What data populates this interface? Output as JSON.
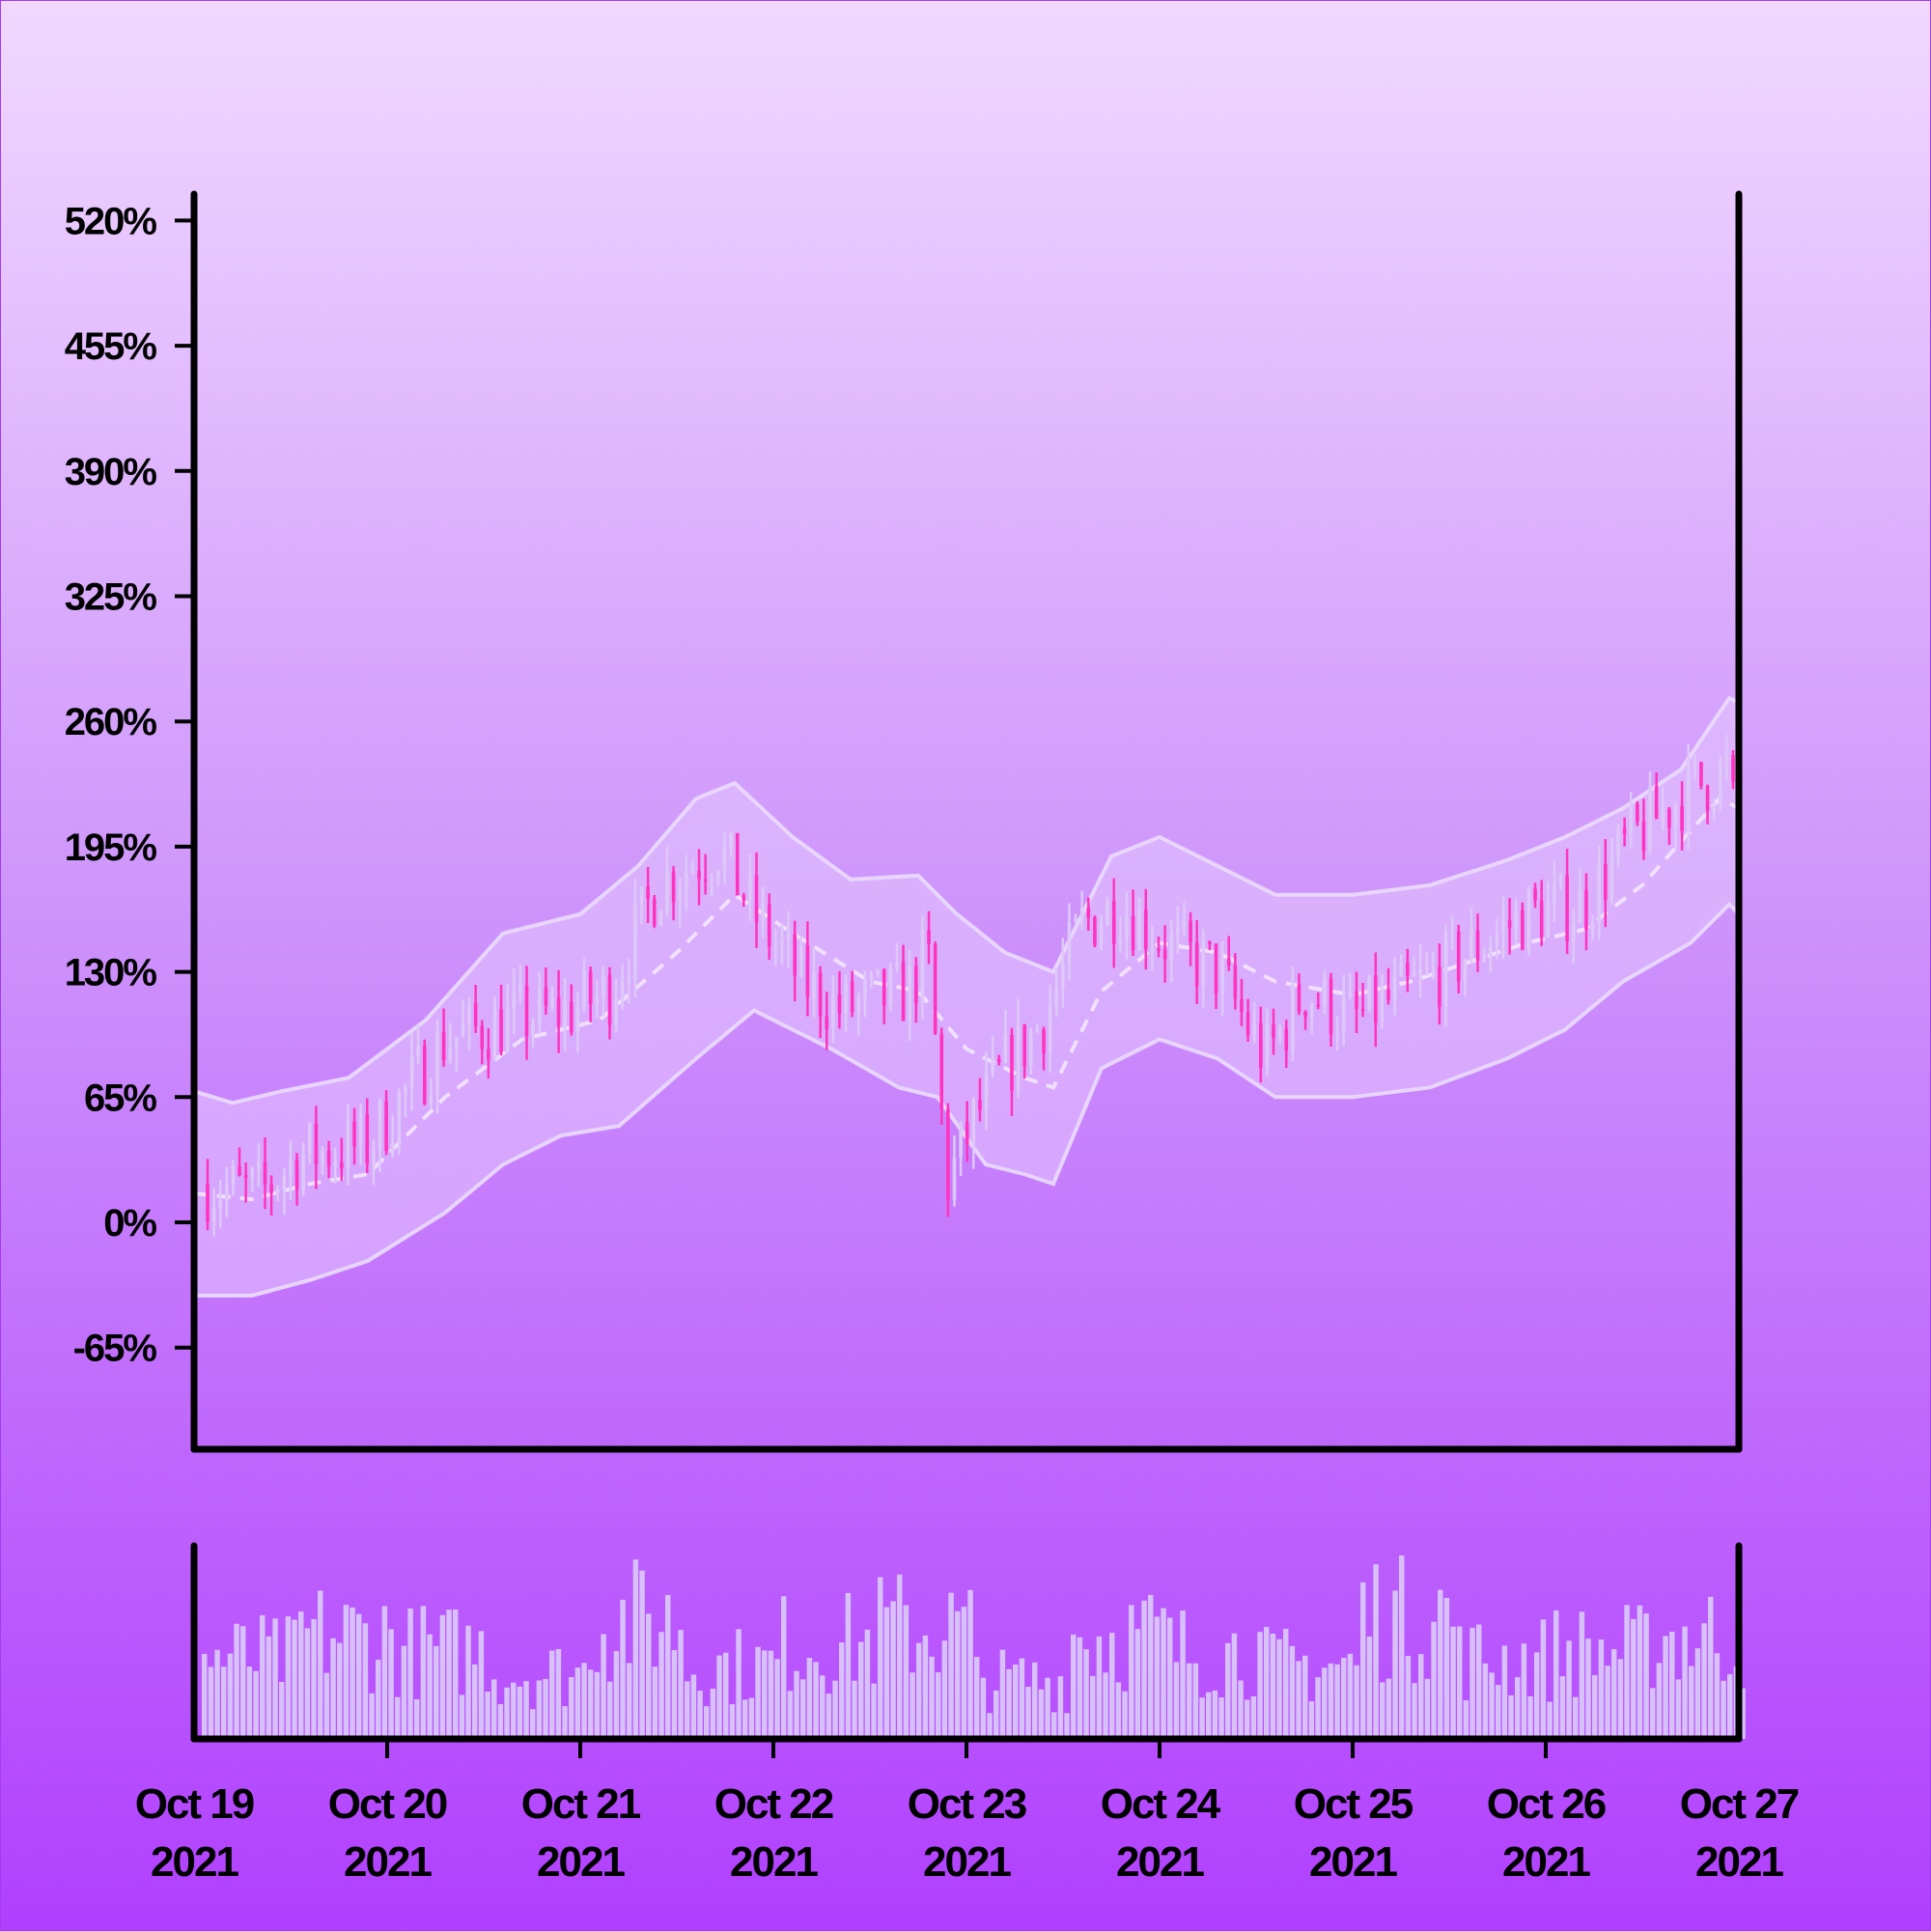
{
  "chart_data": {
    "type": "ohlc",
    "x_range": [
      "2021-10-19",
      "2021-10-27"
    ],
    "y_axis": {
      "ticks": [
        "520%",
        "455%",
        "390%",
        "325%",
        "260%",
        "195%",
        "130%",
        "65%",
        "0%",
        "-65%"
      ],
      "tick_values": [
        520,
        455,
        390,
        325,
        260,
        195,
        130,
        65,
        0,
        -65
      ],
      "ylim": [
        -100,
        535
      ]
    },
    "x_axis": {
      "ticks": [
        {
          "line1": "Oct 19",
          "line2": "2021"
        },
        {
          "line1": "Oct 20",
          "line2": "2021"
        },
        {
          "line1": "Oct 21",
          "line2": "2021"
        },
        {
          "line1": "Oct 22",
          "line2": "2021"
        },
        {
          "line1": "Oct 23",
          "line2": "2021"
        },
        {
          "line1": "Oct 24",
          "line2": "2021"
        },
        {
          "line1": "Oct 25",
          "line2": "2021"
        },
        {
          "line1": "Oct 26",
          "line2": "2021"
        },
        {
          "line1": "Oct 27",
          "line2": "2021"
        }
      ]
    },
    "price_path": [
      [
        0.0,
        20
      ],
      [
        0.35,
        15
      ],
      [
        0.55,
        35
      ],
      [
        0.9,
        40
      ],
      [
        1.3,
        95
      ],
      [
        1.65,
        105
      ],
      [
        1.95,
        110
      ],
      [
        2.15,
        120
      ],
      [
        2.4,
        175
      ],
      [
        2.72,
        195
      ],
      [
        2.9,
        160
      ],
      [
        3.15,
        125
      ],
      [
        3.35,
        110
      ],
      [
        3.7,
        120
      ],
      [
        3.8,
        140
      ],
      [
        3.9,
        20
      ],
      [
        4.05,
        55
      ],
      [
        4.2,
        80
      ],
      [
        4.4,
        105
      ],
      [
        4.6,
        155
      ],
      [
        4.8,
        165
      ],
      [
        5.1,
        140
      ],
      [
        5.3,
        130
      ],
      [
        5.55,
        85
      ],
      [
        5.75,
        120
      ],
      [
        6.0,
        105
      ],
      [
        6.3,
        120
      ],
      [
        6.6,
        140
      ],
      [
        6.9,
        160
      ],
      [
        7.2,
        165
      ],
      [
        7.45,
        200
      ],
      [
        7.75,
        225
      ],
      [
        7.95,
        235
      ],
      [
        8.0,
        185
      ]
    ],
    "sma_path": [
      [
        0.0,
        15
      ],
      [
        0.3,
        12
      ],
      [
        0.6,
        20
      ],
      [
        0.9,
        25
      ],
      [
        1.3,
        65
      ],
      [
        1.7,
        95
      ],
      [
        2.1,
        105
      ],
      [
        2.5,
        140
      ],
      [
        2.8,
        170
      ],
      [
        3.1,
        150
      ],
      [
        3.5,
        125
      ],
      [
        3.75,
        120
      ],
      [
        4.0,
        90
      ],
      [
        4.3,
        75
      ],
      [
        4.45,
        70
      ],
      [
        4.7,
        120
      ],
      [
        5.0,
        145
      ],
      [
        5.3,
        140
      ],
      [
        5.6,
        125
      ],
      [
        6.0,
        118
      ],
      [
        6.3,
        125
      ],
      [
        6.6,
        135
      ],
      [
        6.9,
        145
      ],
      [
        7.2,
        152
      ],
      [
        7.5,
        175
      ],
      [
        7.9,
        220
      ],
      [
        8.0,
        215
      ]
    ],
    "band_upper": [
      [
        0.0,
        68
      ],
      [
        0.2,
        62
      ],
      [
        0.45,
        68
      ],
      [
        0.8,
        75
      ],
      [
        1.2,
        105
      ],
      [
        1.6,
        150
      ],
      [
        2.0,
        160
      ],
      [
        2.3,
        185
      ],
      [
        2.6,
        220
      ],
      [
        2.8,
        228
      ],
      [
        3.1,
        200
      ],
      [
        3.4,
        178
      ],
      [
        3.75,
        180
      ],
      [
        3.95,
        160
      ],
      [
        4.2,
        140
      ],
      [
        4.45,
        130
      ],
      [
        4.75,
        190
      ],
      [
        5.0,
        200
      ],
      [
        5.3,
        185
      ],
      [
        5.6,
        170
      ],
      [
        6.0,
        170
      ],
      [
        6.4,
        175
      ],
      [
        6.8,
        188
      ],
      [
        7.1,
        200
      ],
      [
        7.4,
        215
      ],
      [
        7.7,
        235
      ],
      [
        7.95,
        272
      ],
      [
        8.0,
        270
      ]
    ],
    "band_lower": [
      [
        0.0,
        -38
      ],
      [
        0.3,
        -38
      ],
      [
        0.6,
        -30
      ],
      [
        0.9,
        -20
      ],
      [
        1.3,
        5
      ],
      [
        1.6,
        30
      ],
      [
        1.9,
        45
      ],
      [
        2.2,
        50
      ],
      [
        2.6,
        85
      ],
      [
        2.9,
        110
      ],
      [
        3.3,
        90
      ],
      [
        3.65,
        70
      ],
      [
        3.85,
        65
      ],
      [
        4.1,
        30
      ],
      [
        4.3,
        25
      ],
      [
        4.45,
        20
      ],
      [
        4.7,
        80
      ],
      [
        5.0,
        95
      ],
      [
        5.3,
        85
      ],
      [
        5.6,
        65
      ],
      [
        6.0,
        65
      ],
      [
        6.4,
        70
      ],
      [
        6.8,
        85
      ],
      [
        7.1,
        100
      ],
      [
        7.4,
        125
      ],
      [
        7.75,
        145
      ],
      [
        7.95,
        165
      ],
      [
        8.0,
        160
      ]
    ],
    "volume_profile": [
      0.55,
      0.7,
      0.6,
      0.45,
      0.8,
      0.5,
      0.65,
      0.75,
      0.4,
      0.7,
      0.6,
      0.5,
      0.85,
      0.55,
      0.6,
      0.7
    ]
  },
  "colors": {
    "up_candle": "#ddc8f8",
    "down_candle": "#ff33c0",
    "band_fill": "#e4c6ff",
    "band_line": "#eadcff",
    "sma_line": "#f3e6ff",
    "volume_bar": "#d8c0fa",
    "axis": "#000000"
  }
}
